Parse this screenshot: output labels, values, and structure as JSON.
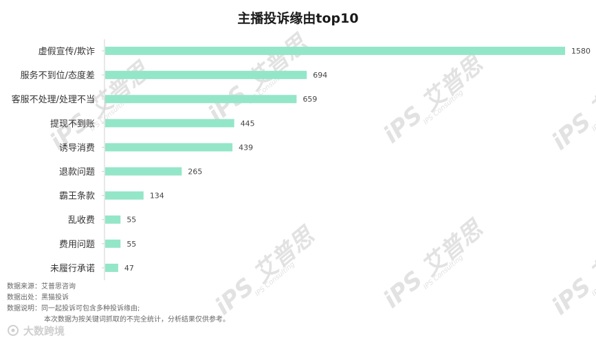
{
  "chart_data": {
    "type": "bar",
    "orientation": "horizontal",
    "title": "主播投诉缘由top10",
    "categories": [
      "虚假宣传/欺诈",
      "服务不到位/态度差",
      "客服不处理/处理不当",
      "提现不到账",
      "诱导消费",
      "退款问题",
      "霸王条款",
      "乱收费",
      "费用问题",
      "未履行承诺"
    ],
    "values": [
      1580,
      694,
      659,
      445,
      439,
      265,
      134,
      55,
      55,
      47
    ],
    "xlim": [
      0,
      1580
    ],
    "grid": false,
    "legend": "none",
    "bar_color": "#94e6c9"
  },
  "notes": [
    {
      "key": "数据来源：",
      "value": "艾普思咨询"
    },
    {
      "key": "数据出处：",
      "value": "黑猫投诉"
    },
    {
      "key": "数据说明：",
      "value": "同一起投诉可包含多种投诉缘由;"
    },
    {
      "key": "",
      "value": "本次数据为按关键词抓取的不完全统计，分析结果仅供参考。"
    }
  ],
  "watermark": {
    "mark": "iPS 艾普思",
    "sub": "IPS Consulting"
  },
  "brand": {
    "text": "大数跨境",
    "icon": "brand-logo-icon"
  }
}
